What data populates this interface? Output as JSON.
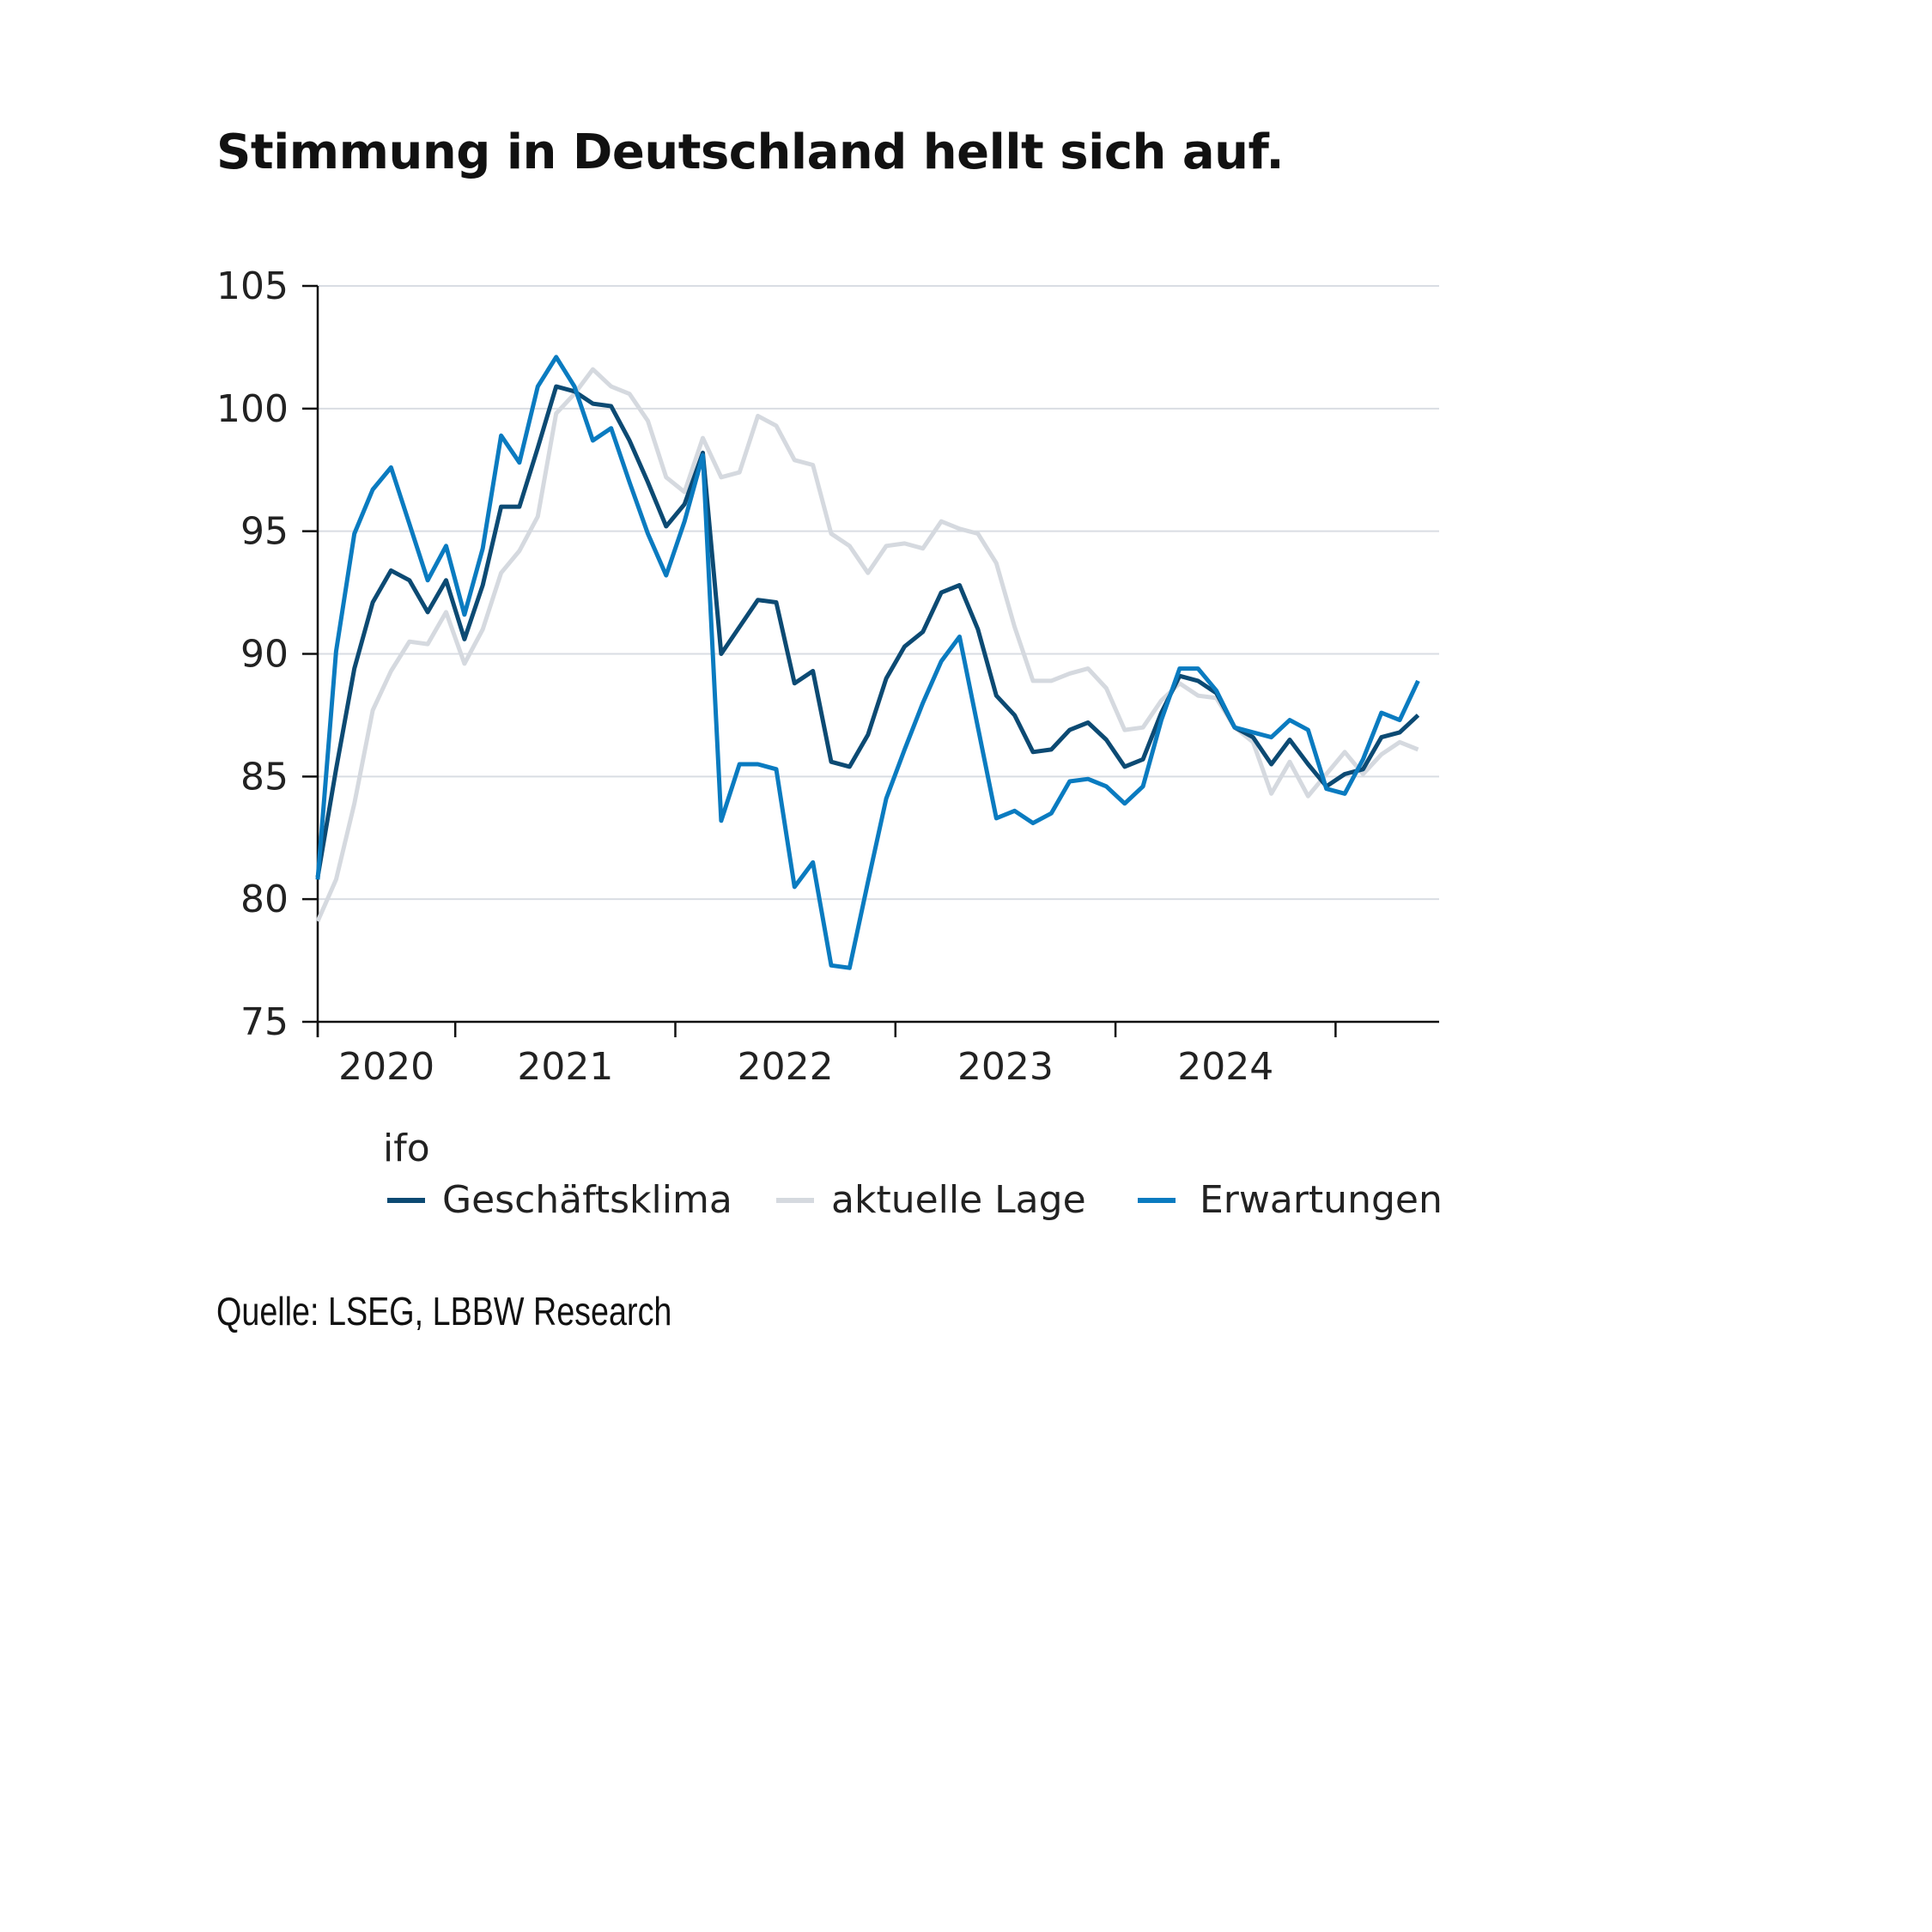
{
  "title": "Stimmung in Deutschland hellt sich auf.",
  "source": "Quelle: LSEG, LBBW Research",
  "chart_data": {
    "type": "line",
    "title": "Stimmung in Deutschland hellt sich auf.",
    "legend_title": "ifo",
    "legend_position": "bottom",
    "grid": true,
    "ylim": [
      75,
      105
    ],
    "yticks": [
      75,
      80,
      85,
      90,
      95,
      100,
      105
    ],
    "xtick_labels": [
      "2020",
      "2021",
      "2022",
      "2023",
      "2024"
    ],
    "x": [
      "2020-05",
      "2020-06",
      "2020-07",
      "2020-08",
      "2020-09",
      "2020-10",
      "2020-11",
      "2020-12",
      "2021-01",
      "2021-02",
      "2021-03",
      "2021-04",
      "2021-05",
      "2021-06",
      "2021-07",
      "2021-08",
      "2021-09",
      "2021-10",
      "2021-11",
      "2021-12",
      "2022-01",
      "2022-02",
      "2022-03",
      "2022-04",
      "2022-05",
      "2022-06",
      "2022-07",
      "2022-08",
      "2022-09",
      "2022-10",
      "2022-11",
      "2022-12",
      "2023-01",
      "2023-02",
      "2023-03",
      "2023-04",
      "2023-05",
      "2023-06",
      "2023-07",
      "2023-08",
      "2023-09",
      "2023-10",
      "2023-11",
      "2023-12",
      "2024-01",
      "2024-02",
      "2024-03",
      "2024-04",
      "2024-05",
      "2024-06",
      "2024-07",
      "2024-08",
      "2024-09",
      "2024-10",
      "2024-11",
      "2024-12",
      "2025-01",
      "2025-02",
      "2025-03",
      "2025-04",
      "2025-05"
    ],
    "series": [
      {
        "name": "Geschäftsklima",
        "color": "#0c4a73",
        "values": [
          80.9,
          85.3,
          89.4,
          92.1,
          93.4,
          93.0,
          91.7,
          93.0,
          90.6,
          92.8,
          96.0,
          96.0,
          98.4,
          100.9,
          100.7,
          100.2,
          100.1,
          98.7,
          97.0,
          95.2,
          96.1,
          98.2,
          90.0,
          91.1,
          92.2,
          92.1,
          88.8,
          89.3,
          85.6,
          85.4,
          86.7,
          89.0,
          90.3,
          90.9,
          92.5,
          92.8,
          91.0,
          88.3,
          87.5,
          86.0,
          86.1,
          86.9,
          87.2,
          86.5,
          85.4,
          85.7,
          87.6,
          89.1,
          88.9,
          88.4,
          87.0,
          86.6,
          85.5,
          86.5,
          85.5,
          84.6,
          85.1,
          85.3,
          86.6,
          86.8,
          87.5
        ]
      },
      {
        "name": "aktuelle Lage",
        "color": "#d5d9df",
        "values": [
          79.1,
          80.8,
          83.9,
          87.7,
          89.3,
          90.5,
          90.4,
          91.7,
          89.6,
          91.0,
          93.3,
          94.2,
          95.6,
          99.8,
          100.6,
          101.6,
          100.9,
          100.6,
          99.5,
          97.2,
          96.6,
          98.8,
          97.2,
          97.4,
          99.7,
          99.3,
          97.9,
          97.7,
          94.9,
          94.4,
          93.3,
          94.4,
          94.5,
          94.3,
          95.4,
          95.1,
          94.9,
          93.7,
          91.1,
          88.9,
          88.9,
          89.2,
          89.4,
          88.6,
          86.9,
          87.0,
          88.1,
          88.8,
          88.3,
          88.2,
          87.0,
          86.4,
          84.3,
          85.6,
          84.2,
          85.1,
          86.0,
          85.1,
          85.9,
          86.4,
          86.1
        ]
      },
      {
        "name": "Erwartungen",
        "color": "#0a7bc0",
        "values": [
          80.8,
          90.1,
          94.9,
          96.7,
          97.6,
          95.3,
          93.0,
          94.4,
          91.6,
          94.3,
          98.9,
          97.8,
          100.9,
          102.1,
          100.9,
          98.7,
          99.2,
          97.0,
          94.9,
          93.2,
          95.4,
          98.1,
          83.2,
          85.5,
          85.5,
          85.3,
          80.5,
          81.5,
          77.3,
          77.2,
          80.7,
          84.1,
          86.1,
          88.0,
          89.7,
          90.7,
          87.0,
          83.3,
          83.6,
          83.1,
          83.5,
          84.8,
          84.9,
          84.6,
          83.9,
          84.6,
          87.3,
          89.4,
          89.4,
          88.5,
          87.0,
          86.8,
          86.6,
          87.3,
          86.9,
          84.5,
          84.3,
          85.7,
          87.6,
          87.3,
          88.9
        ]
      }
    ]
  }
}
